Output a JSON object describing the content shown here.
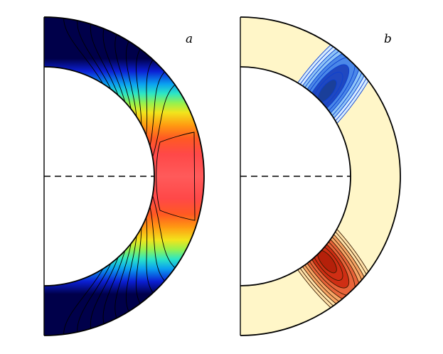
{
  "figure": {
    "panels": [
      {
        "id": "a",
        "label": "a",
        "colormap": "jet",
        "colors": [
          "#00004a",
          "#0b1fd4",
          "#0aa0f0",
          "#2be6c6",
          "#96f24e",
          "#f2e41c",
          "#ff9a12",
          "#ff5a22",
          "#ff5050"
        ]
      },
      {
        "id": "b",
        "label": "b",
        "colormap": "diverging",
        "colors": {
          "background": "#fff6c8",
          "upper_lobe": [
            "#d6ecff",
            "#8fc5f7",
            "#4b88e8",
            "#2048c0",
            "#1a3f9a"
          ],
          "lower_lobe": [
            "#ffe1a8",
            "#f7a566",
            "#e8643a",
            "#cf2e14",
            "#b5200a"
          ]
        }
      }
    ],
    "equator_line": "dashed"
  }
}
